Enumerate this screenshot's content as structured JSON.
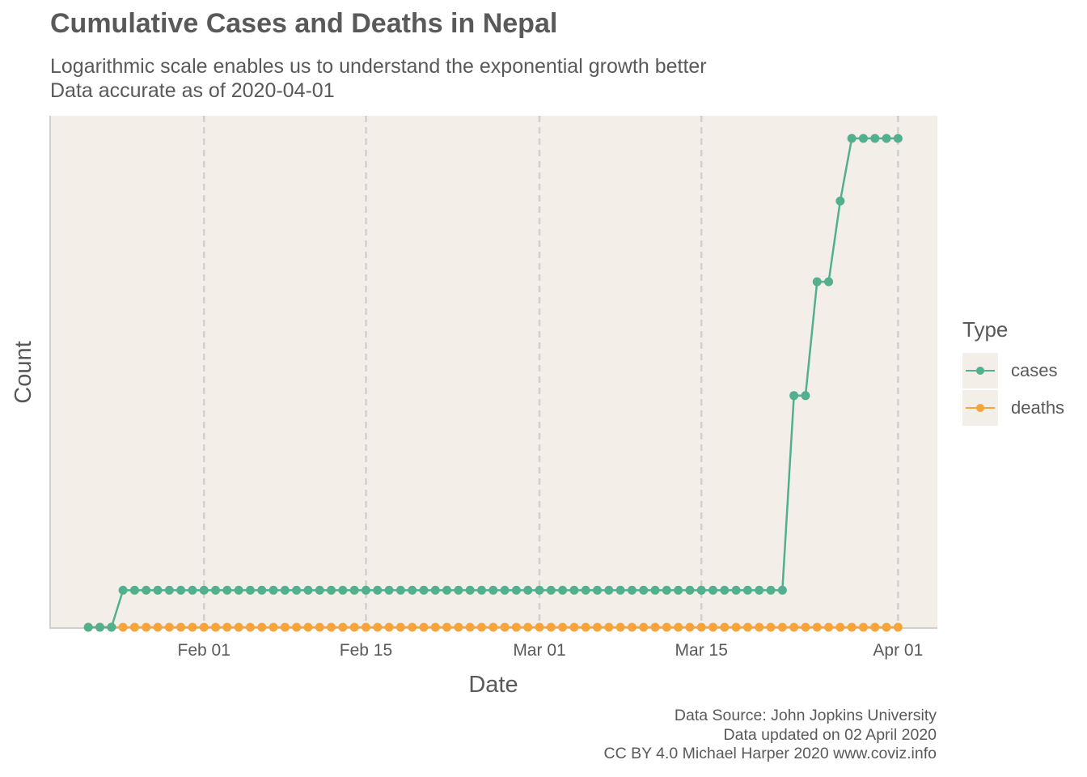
{
  "header": {
    "title": "Cumulative Cases and Deaths in Nepal",
    "subtitle_line1": "Logarithmic scale enables us to understand the exponential growth better",
    "subtitle_line2": "Data accurate as of 2020-04-01"
  },
  "caption": {
    "line1": "Data Source: John Jopkins University",
    "line2": "Data updated on 02 April 2020",
    "line3": "CC BY 4.0 Michael Harper 2020 www.coviz.info"
  },
  "legend": {
    "title": "Type",
    "items": [
      {
        "label": "cases",
        "color": "#52b08e"
      },
      {
        "label": "deaths",
        "color": "#f9a43a"
      }
    ]
  },
  "colors": {
    "panel_background": "#f4eee8",
    "grid": "#d3d0cc",
    "axis": "#cfcfcf",
    "text": "#595959"
  },
  "chart_data": {
    "type": "line",
    "title": "Cumulative Cases and Deaths in Nepal",
    "xlabel": "Date",
    "ylabel": "Count",
    "y_scale": "log",
    "grid": "vertical dashed major lines",
    "legend_position": "right",
    "x_tick_labels": [
      {
        "date": "2020-02-01",
        "label": "Feb 01"
      },
      {
        "date": "2020-02-15",
        "label": "Feb 15"
      },
      {
        "date": "2020-03-01",
        "label": "Mar 01"
      },
      {
        "date": "2020-03-15",
        "label": "Mar 15"
      },
      {
        "date": "2020-04-01",
        "label": "Apr 01"
      }
    ],
    "xlim": [
      "2020-01-18",
      "2020-04-04"
    ],
    "ylim": [
      0.5,
      5
    ],
    "series": [
      {
        "name": "cases",
        "color": "#52b08e",
        "points": [
          [
            "2020-01-22",
            0
          ],
          [
            "2020-01-23",
            0
          ],
          [
            "2020-01-24",
            0
          ],
          [
            "2020-01-25",
            1
          ],
          [
            "2020-01-26",
            1
          ],
          [
            "2020-01-27",
            1
          ],
          [
            "2020-01-28",
            1
          ],
          [
            "2020-01-29",
            1
          ],
          [
            "2020-01-30",
            1
          ],
          [
            "2020-01-31",
            1
          ],
          [
            "2020-02-01",
            1
          ],
          [
            "2020-02-02",
            1
          ],
          [
            "2020-02-03",
            1
          ],
          [
            "2020-02-04",
            1
          ],
          [
            "2020-02-05",
            1
          ],
          [
            "2020-02-06",
            1
          ],
          [
            "2020-02-07",
            1
          ],
          [
            "2020-02-08",
            1
          ],
          [
            "2020-02-09",
            1
          ],
          [
            "2020-02-10",
            1
          ],
          [
            "2020-02-11",
            1
          ],
          [
            "2020-02-12",
            1
          ],
          [
            "2020-02-13",
            1
          ],
          [
            "2020-02-14",
            1
          ],
          [
            "2020-02-15",
            1
          ],
          [
            "2020-02-16",
            1
          ],
          [
            "2020-02-17",
            1
          ],
          [
            "2020-02-18",
            1
          ],
          [
            "2020-02-19",
            1
          ],
          [
            "2020-02-20",
            1
          ],
          [
            "2020-02-21",
            1
          ],
          [
            "2020-02-22",
            1
          ],
          [
            "2020-02-23",
            1
          ],
          [
            "2020-02-24",
            1
          ],
          [
            "2020-02-25",
            1
          ],
          [
            "2020-02-26",
            1
          ],
          [
            "2020-02-27",
            1
          ],
          [
            "2020-02-28",
            1
          ],
          [
            "2020-02-29",
            1
          ],
          [
            "2020-03-01",
            1
          ],
          [
            "2020-03-02",
            1
          ],
          [
            "2020-03-03",
            1
          ],
          [
            "2020-03-04",
            1
          ],
          [
            "2020-03-05",
            1
          ],
          [
            "2020-03-06",
            1
          ],
          [
            "2020-03-07",
            1
          ],
          [
            "2020-03-08",
            1
          ],
          [
            "2020-03-09",
            1
          ],
          [
            "2020-03-10",
            1
          ],
          [
            "2020-03-11",
            1
          ],
          [
            "2020-03-12",
            1
          ],
          [
            "2020-03-13",
            1
          ],
          [
            "2020-03-14",
            1
          ],
          [
            "2020-03-15",
            1
          ],
          [
            "2020-03-16",
            1
          ],
          [
            "2020-03-17",
            1
          ],
          [
            "2020-03-18",
            1
          ],
          [
            "2020-03-19",
            1
          ],
          [
            "2020-03-20",
            1
          ],
          [
            "2020-03-21",
            1
          ],
          [
            "2020-03-22",
            1
          ],
          [
            "2020-03-23",
            2
          ],
          [
            "2020-03-24",
            2
          ],
          [
            "2020-03-25",
            3
          ],
          [
            "2020-03-26",
            3
          ],
          [
            "2020-03-27",
            4
          ],
          [
            "2020-03-28",
            5
          ],
          [
            "2020-03-29",
            5
          ],
          [
            "2020-03-30",
            5
          ],
          [
            "2020-03-31",
            5
          ],
          [
            "2020-04-01",
            5
          ]
        ]
      },
      {
        "name": "deaths",
        "color": "#f9a43a",
        "points": [
          [
            "2020-01-22",
            0
          ],
          [
            "2020-01-23",
            0
          ],
          [
            "2020-01-24",
            0
          ],
          [
            "2020-01-25",
            0
          ],
          [
            "2020-01-26",
            0
          ],
          [
            "2020-01-27",
            0
          ],
          [
            "2020-01-28",
            0
          ],
          [
            "2020-01-29",
            0
          ],
          [
            "2020-01-30",
            0
          ],
          [
            "2020-01-31",
            0
          ],
          [
            "2020-02-01",
            0
          ],
          [
            "2020-02-02",
            0
          ],
          [
            "2020-02-03",
            0
          ],
          [
            "2020-02-04",
            0
          ],
          [
            "2020-02-05",
            0
          ],
          [
            "2020-02-06",
            0
          ],
          [
            "2020-02-07",
            0
          ],
          [
            "2020-02-08",
            0
          ],
          [
            "2020-02-09",
            0
          ],
          [
            "2020-02-10",
            0
          ],
          [
            "2020-02-11",
            0
          ],
          [
            "2020-02-12",
            0
          ],
          [
            "2020-02-13",
            0
          ],
          [
            "2020-02-14",
            0
          ],
          [
            "2020-02-15",
            0
          ],
          [
            "2020-02-16",
            0
          ],
          [
            "2020-02-17",
            0
          ],
          [
            "2020-02-18",
            0
          ],
          [
            "2020-02-19",
            0
          ],
          [
            "2020-02-20",
            0
          ],
          [
            "2020-02-21",
            0
          ],
          [
            "2020-02-22",
            0
          ],
          [
            "2020-02-23",
            0
          ],
          [
            "2020-02-24",
            0
          ],
          [
            "2020-02-25",
            0
          ],
          [
            "2020-02-26",
            0
          ],
          [
            "2020-02-27",
            0
          ],
          [
            "2020-02-28",
            0
          ],
          [
            "2020-02-29",
            0
          ],
          [
            "2020-03-01",
            0
          ],
          [
            "2020-03-02",
            0
          ],
          [
            "2020-03-03",
            0
          ],
          [
            "2020-03-04",
            0
          ],
          [
            "2020-03-05",
            0
          ],
          [
            "2020-03-06",
            0
          ],
          [
            "2020-03-07",
            0
          ],
          [
            "2020-03-08",
            0
          ],
          [
            "2020-03-09",
            0
          ],
          [
            "2020-03-10",
            0
          ],
          [
            "2020-03-11",
            0
          ],
          [
            "2020-03-12",
            0
          ],
          [
            "2020-03-13",
            0
          ],
          [
            "2020-03-14",
            0
          ],
          [
            "2020-03-15",
            0
          ],
          [
            "2020-03-16",
            0
          ],
          [
            "2020-03-17",
            0
          ],
          [
            "2020-03-18",
            0
          ],
          [
            "2020-03-19",
            0
          ],
          [
            "2020-03-20",
            0
          ],
          [
            "2020-03-21",
            0
          ],
          [
            "2020-03-22",
            0
          ],
          [
            "2020-03-23",
            0
          ],
          [
            "2020-03-24",
            0
          ],
          [
            "2020-03-25",
            0
          ],
          [
            "2020-03-26",
            0
          ],
          [
            "2020-03-27",
            0
          ],
          [
            "2020-03-28",
            0
          ],
          [
            "2020-03-29",
            0
          ],
          [
            "2020-03-30",
            0
          ],
          [
            "2020-03-31",
            0
          ],
          [
            "2020-04-01",
            0
          ]
        ]
      }
    ]
  }
}
